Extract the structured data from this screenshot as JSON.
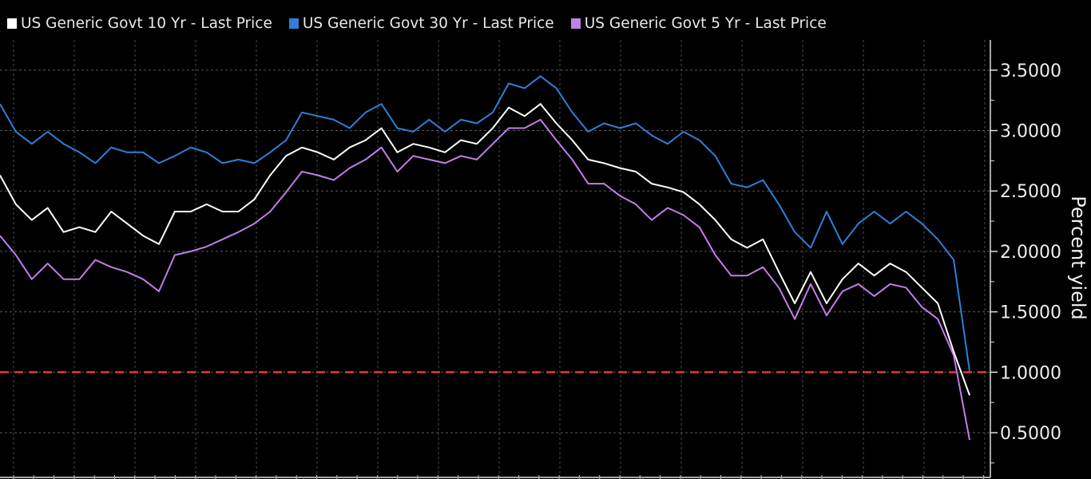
{
  "chart_data": {
    "type": "line",
    "title": "",
    "xlabel": "",
    "ylabel": "Percent yield",
    "ylim": [
      0.13,
      3.75
    ],
    "yticks": [
      "0.5000",
      "1.0000",
      "1.5000",
      "2.0000",
      "2.5000",
      "3.0000",
      "3.5000"
    ],
    "ytick_values": [
      0.5,
      1.0,
      1.5,
      2.0,
      2.5,
      3.0,
      3.5
    ],
    "grid": true,
    "legend_position": "top-left",
    "reference_line": {
      "value": 1.0,
      "color": "#e0383c",
      "style": "dashed"
    },
    "series": [
      {
        "name": "US Generic Govt 10 Yr - Last Price",
        "color": "#ffffff",
        "values": [
          2.63,
          2.39,
          2.26,
          2.36,
          2.16,
          2.2,
          2.16,
          2.33,
          2.23,
          2.13,
          2.06,
          2.33,
          2.33,
          2.39,
          2.33,
          2.33,
          2.43,
          2.63,
          2.79,
          2.86,
          2.82,
          2.76,
          2.86,
          2.92,
          3.02,
          2.82,
          2.89,
          2.86,
          2.82,
          2.92,
          2.89,
          3.02,
          3.19,
          3.12,
          3.22,
          3.06,
          2.92,
          2.76,
          2.73,
          2.69,
          2.66,
          2.56,
          2.53,
          2.49,
          2.39,
          2.26,
          2.1,
          2.03,
          2.1,
          1.83,
          1.57,
          1.83,
          1.57,
          1.77,
          1.9,
          1.8,
          1.9,
          1.83,
          1.7,
          1.57,
          1.17,
          0.81
        ]
      },
      {
        "name": "US Generic Govt 30 Yr - Last Price",
        "color": "#2f7fd8",
        "values": [
          3.22,
          2.99,
          2.89,
          2.99,
          2.89,
          2.82,
          2.73,
          2.86,
          2.82,
          2.82,
          2.73,
          2.79,
          2.86,
          2.82,
          2.73,
          2.76,
          2.73,
          2.82,
          2.92,
          3.15,
          3.12,
          3.09,
          3.02,
          3.15,
          3.22,
          3.02,
          2.99,
          3.09,
          2.99,
          3.09,
          3.06,
          3.15,
          3.39,
          3.35,
          3.45,
          3.35,
          3.15,
          2.99,
          3.06,
          3.02,
          3.06,
          2.96,
          2.89,
          2.99,
          2.92,
          2.79,
          2.56,
          2.53,
          2.59,
          2.39,
          2.16,
          2.03,
          2.33,
          2.06,
          2.23,
          2.33,
          2.23,
          2.33,
          2.23,
          2.1,
          1.93,
          1.01
        ]
      },
      {
        "name": "US Generic Govt 5 Yr - Last Price",
        "color": "#c27ee8",
        "values": [
          2.13,
          1.97,
          1.77,
          1.9,
          1.77,
          1.77,
          1.93,
          1.87,
          1.83,
          1.77,
          1.67,
          1.97,
          2.0,
          2.04,
          2.1,
          2.16,
          2.23,
          2.33,
          2.49,
          2.66,
          2.63,
          2.59,
          2.69,
          2.76,
          2.86,
          2.66,
          2.79,
          2.76,
          2.73,
          2.79,
          2.76,
          2.89,
          3.02,
          3.02,
          3.09,
          2.92,
          2.76,
          2.56,
          2.56,
          2.46,
          2.39,
          2.26,
          2.36,
          2.3,
          2.2,
          1.97,
          1.8,
          1.8,
          1.87,
          1.7,
          1.44,
          1.73,
          1.47,
          1.67,
          1.73,
          1.63,
          1.73,
          1.7,
          1.54,
          1.44,
          1.14,
          0.44
        ]
      }
    ]
  }
}
